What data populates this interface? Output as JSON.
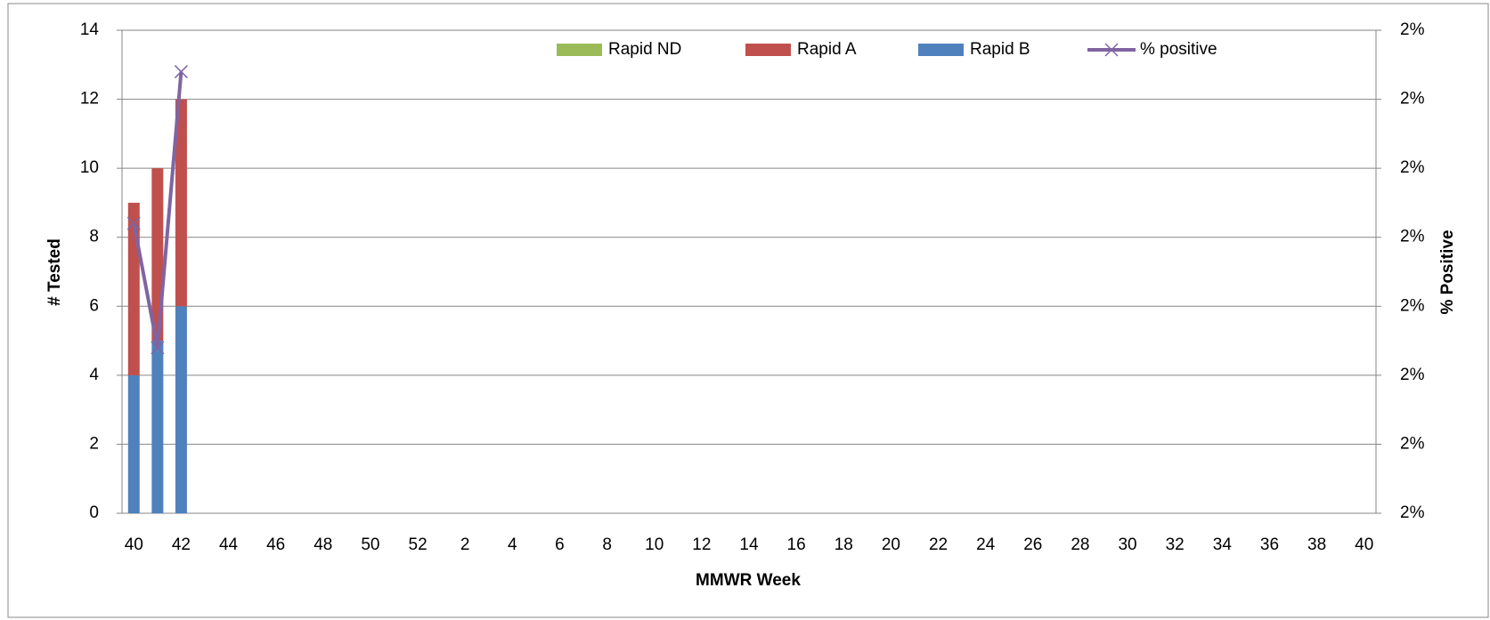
{
  "chart_data": {
    "type": "bar",
    "x_label": "MMWR Week",
    "y_label": "# Tested",
    "y2_label": "% Positive",
    "categories": [
      40,
      null,
      42,
      null,
      44,
      null,
      46,
      null,
      48,
      null,
      50,
      null,
      52,
      null,
      2,
      null,
      4,
      null,
      6,
      null,
      8,
      null,
      10,
      null,
      12,
      null,
      14,
      null,
      16,
      null,
      18,
      null,
      20,
      null,
      22,
      null,
      24,
      null,
      26,
      null,
      28,
      null,
      30,
      null,
      32,
      null,
      34,
      null,
      36,
      null,
      38,
      null,
      40
    ],
    "series": [
      {
        "name": "Rapid ND",
        "color": "#9bbb59",
        "values": [
          0,
          0,
          0,
          null,
          null,
          null,
          null,
          null,
          null,
          null,
          null,
          null,
          null,
          null,
          null,
          null,
          null,
          null,
          null,
          null,
          null,
          null,
          null,
          null,
          null,
          null,
          null,
          null,
          null,
          null,
          null,
          null,
          null,
          null,
          null,
          null,
          null,
          null,
          null,
          null,
          null,
          null,
          null,
          null,
          null,
          null,
          null,
          null,
          null,
          null,
          null,
          null,
          null
        ]
      },
      {
        "name": "Rapid A",
        "color": "#c0504d",
        "values": [
          5,
          5,
          6,
          null,
          null,
          null,
          null,
          null,
          null,
          null,
          null,
          null,
          null,
          null,
          null,
          null,
          null,
          null,
          null,
          null,
          null,
          null,
          null,
          null,
          null,
          null,
          null,
          null,
          null,
          null,
          null,
          null,
          null,
          null,
          null,
          null,
          null,
          null,
          null,
          null,
          null,
          null,
          null,
          null,
          null,
          null,
          null,
          null,
          null,
          null,
          null,
          null,
          null
        ]
      },
      {
        "name": "Rapid B",
        "color": "#4f81bd",
        "values": [
          4,
          5,
          6,
          null,
          null,
          null,
          null,
          null,
          null,
          null,
          null,
          null,
          null,
          null,
          null,
          null,
          null,
          null,
          null,
          null,
          null,
          null,
          null,
          null,
          null,
          null,
          null,
          null,
          null,
          null,
          null,
          null,
          null,
          null,
          null,
          null,
          null,
          null,
          null,
          null,
          null,
          null,
          null,
          null,
          null,
          null,
          null,
          null,
          null,
          null,
          null,
          null,
          null
        ]
      },
      {
        "name": "% positive",
        "color": "#8064a2",
        "type": "line",
        "axis": "y2",
        "values": [
          2.07,
          1.89,
          2.29,
          null,
          null,
          null,
          null,
          null,
          null,
          null,
          null,
          null,
          null,
          null,
          null,
          null,
          null,
          null,
          null,
          null,
          null,
          null,
          null,
          null,
          null,
          null,
          null,
          null,
          null,
          null,
          null,
          null,
          null,
          null,
          null,
          null,
          null,
          null,
          null,
          null,
          null,
          null,
          null,
          null,
          null,
          null,
          null,
          null,
          null,
          null,
          null,
          null,
          null
        ]
      }
    ],
    "ylim": [
      0,
      14
    ],
    "yticks": [
      0,
      2,
      4,
      6,
      8,
      10,
      12,
      14
    ],
    "y2lim": [
      1.65,
      2.35
    ],
    "y2ticks": [
      {
        "value": 1.65,
        "label": "2%"
      },
      {
        "value": 1.75,
        "label": "2%"
      },
      {
        "value": 1.85,
        "label": "2%"
      },
      {
        "value": 1.95,
        "label": "2%"
      },
      {
        "value": 2.05,
        "label": "2%"
      },
      {
        "value": 2.15,
        "label": "2%"
      },
      {
        "value": 2.25,
        "label": "2%"
      },
      {
        "value": 2.35,
        "label": "2%"
      }
    ],
    "grid": true
  }
}
